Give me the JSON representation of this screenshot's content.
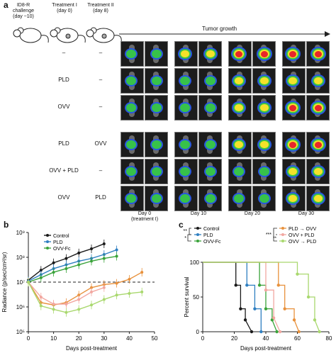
{
  "panels": {
    "a": {
      "letter": "a",
      "challenge": "ID8-R\nchallenge\n(day −10)",
      "treatment1": "Treatment I\n(day 0)",
      "treatment2": "Treatment II\n(day 8)",
      "tumor_growth": "Tumor growth",
      "rows": [
        {
          "t1": "–",
          "t2": "–"
        },
        {
          "t1": "PLD",
          "t2": "–"
        },
        {
          "t1": "OVV",
          "t2": "–"
        },
        {
          "t1": "PLD",
          "t2": "OVV"
        },
        {
          "t1": "OVV + PLD",
          "t2": "–"
        },
        {
          "t1": "OVV",
          "t2": "PLD"
        }
      ],
      "days": [
        "Day 0\n(treatment I)",
        "Day 10",
        "Day 20",
        "Day 30"
      ]
    },
    "b": {
      "letter": "b"
    },
    "c": {
      "letter": "c"
    }
  },
  "chart_data": [
    {
      "type": "line",
      "panel": "b",
      "xlabel": "Days post-treatment",
      "ylabel": "Radiance (p/sec/cm²/sr)",
      "xlim": [
        0,
        50
      ],
      "xticks": [
        0,
        10,
        20,
        30,
        40,
        50
      ],
      "yscale": "log",
      "ylim_exp": [
        5,
        9
      ],
      "ytick_labels": [
        "10⁵",
        "10⁶",
        "10⁷",
        "10⁸",
        "10⁹"
      ],
      "reference_line": 10000000,
      "series": [
        {
          "name": "Control",
          "color": "#1a1a1a",
          "x": [
            0,
            5,
            10,
            15,
            20,
            25,
            30
          ],
          "y": [
            12000000.0,
            30000000.0,
            60000000.0,
            90000000.0,
            150000000.0,
            220000000.0,
            350000000.0
          ]
        },
        {
          "name": "PLD",
          "color": "#2f7fc1",
          "x": [
            0,
            5,
            10,
            15,
            20,
            25,
            30,
            35
          ],
          "y": [
            11000000.0,
            20000000.0,
            35000000.0,
            50000000.0,
            70000000.0,
            90000000.0,
            130000000.0,
            200000000.0
          ]
        },
        {
          "name": "OVV-Fc",
          "color": "#3aa33a",
          "x": [
            0,
            5,
            10,
            15,
            20,
            25,
            30,
            35
          ],
          "y": [
            10000000.0,
            15000000.0,
            25000000.0,
            35000000.0,
            50000000.0,
            70000000.0,
            90000000.0,
            110000000.0
          ]
        },
        {
          "name": "PLD → OVV",
          "color": "#e8913c",
          "x": [
            0,
            5,
            10,
            15,
            20,
            25,
            30,
            35,
            40,
            45
          ],
          "y": [
            10000000.0,
            1500000.0,
            1200000.0,
            1500000.0,
            3000000.0,
            6000000.0,
            8000000.0,
            9000000.0,
            13000000.0,
            25000000.0
          ]
        },
        {
          "name": "OVV + PLD",
          "color": "#f2a7a0",
          "x": [
            0,
            5,
            10,
            15,
            20,
            25,
            30
          ],
          "y": [
            10000000.0,
            2500000.0,
            1300000.0,
            1300000.0,
            2000000.0,
            4000000.0,
            6000000.0
          ]
        },
        {
          "name": "OVV → PLD",
          "color": "#a9d86e",
          "x": [
            0,
            5,
            10,
            15,
            20,
            25,
            30,
            35,
            40,
            45
          ],
          "y": [
            10000000.0,
            1100000.0,
            800000.0,
            600000.0,
            800000.0,
            1200000.0,
            2000000.0,
            3000000.0,
            3500000.0,
            4000000.0
          ]
        }
      ]
    },
    {
      "type": "line",
      "panel": "c",
      "xlabel": "Days post-treatment",
      "ylabel": "Percent survival",
      "xlim": [
        0,
        80
      ],
      "xticks": [
        0,
        20,
        40,
        60,
        80
      ],
      "ylim": [
        0,
        100
      ],
      "yticks": [
        0,
        50,
        100
      ],
      "significance": [
        "**",
        "*",
        "***",
        "**"
      ],
      "series": [
        {
          "name": "Control",
          "color": "#1a1a1a",
          "x": [
            0,
            21,
            21,
            24,
            24,
            27,
            27,
            31
          ],
          "y": [
            100,
            100,
            67,
            67,
            33,
            33,
            17,
            0
          ]
        },
        {
          "name": "PLD",
          "color": "#2f7fc1",
          "x": [
            0,
            28,
            28,
            33,
            33,
            37,
            37
          ],
          "y": [
            100,
            100,
            67,
            67,
            33,
            33,
            0
          ]
        },
        {
          "name": "OVV-Fc",
          "color": "#3aa33a",
          "x": [
            0,
            36,
            36,
            40,
            40,
            44,
            44,
            47
          ],
          "y": [
            100,
            100,
            67,
            67,
            33,
            33,
            17,
            0
          ]
        },
        {
          "name": "PLD → OVV",
          "color": "#e8913c",
          "x": [
            0,
            48,
            48,
            52,
            52,
            58,
            58,
            61
          ],
          "y": [
            100,
            100,
            67,
            67,
            33,
            33,
            17,
            0
          ]
        },
        {
          "name": "OVV + PLD",
          "color": "#f2a7a0",
          "x": [
            0,
            40,
            40,
            45,
            45,
            49
          ],
          "y": [
            100,
            100,
            60,
            60,
            20,
            0
          ]
        },
        {
          "name": "OVV → PLD",
          "color": "#a9d86e",
          "x": [
            0,
            60,
            60,
            67,
            67,
            71,
            71,
            74
          ],
          "y": [
            100,
            100,
            83,
            83,
            50,
            50,
            17,
            0
          ]
        }
      ]
    }
  ],
  "colors": {
    "heat_red": "#e8262a",
    "heat_yellow": "#f4e22a",
    "heat_green": "#37c24a",
    "heat_blue": "#2856e0",
    "tile_bg": "#1c1c1c"
  }
}
